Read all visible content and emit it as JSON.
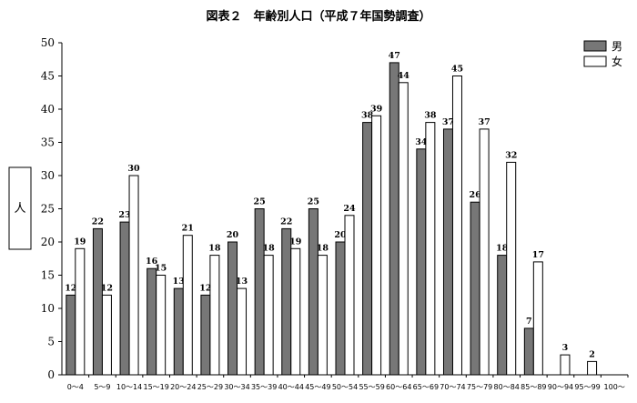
{
  "chart_data": {
    "type": "bar",
    "title": "図表２　年齢別人口（平成７年国勢調査）",
    "ylabel": "人",
    "xlabel": "",
    "ylim": [
      0,
      50
    ],
    "yticks": [
      0,
      5,
      10,
      15,
      20,
      25,
      30,
      35,
      40,
      45,
      50
    ],
    "grid": false,
    "legend_position": "top-right",
    "categories": [
      "0～4",
      "5～9",
      "10～14",
      "15～19",
      "20～24",
      "25～29",
      "30～34",
      "35～39",
      "40～44",
      "45～49",
      "50～54",
      "55～59",
      "60～64",
      "65～69",
      "70～74",
      "75～79",
      "80～84",
      "85～89",
      "90～94",
      "95～99",
      "100～"
    ],
    "series": [
      {
        "name": "男",
        "color": "#777777",
        "values": [
          12,
          22,
          23,
          16,
          13,
          12,
          20,
          25,
          22,
          25,
          20,
          38,
          47,
          34,
          37,
          26,
          18,
          7,
          0,
          0,
          0
        ]
      },
      {
        "name": "女",
        "color": "#ffffff",
        "values": [
          19,
          12,
          30,
          15,
          21,
          18,
          13,
          18,
          19,
          18,
          24,
          39,
          44,
          38,
          45,
          37,
          32,
          17,
          3,
          2,
          0
        ]
      }
    ]
  }
}
